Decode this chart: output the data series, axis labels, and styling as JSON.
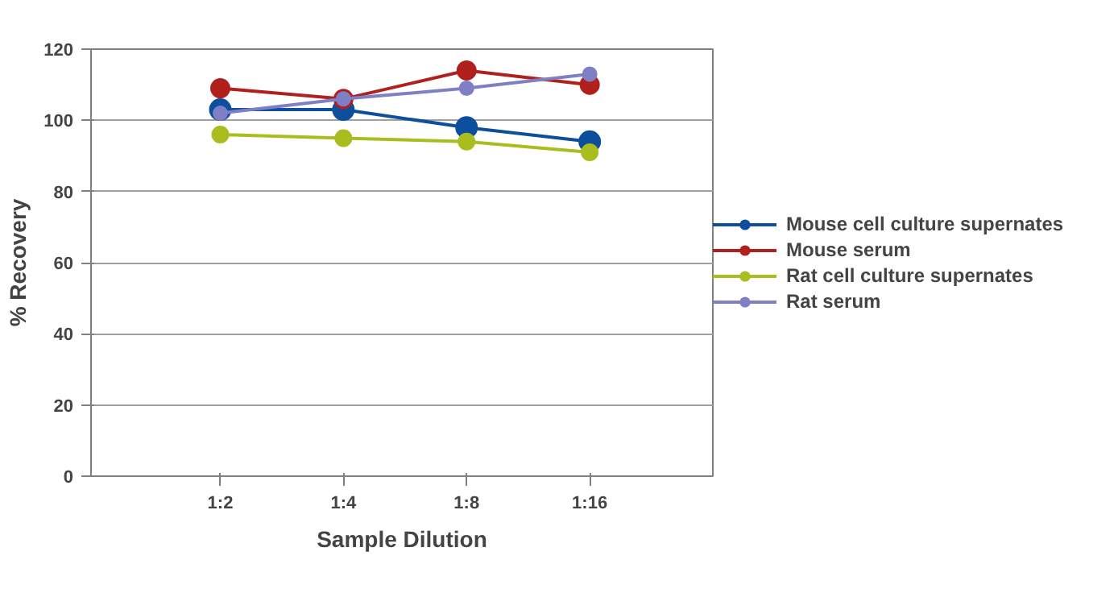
{
  "chart_data": {
    "type": "line",
    "xlabel": "Sample Dilution",
    "ylabel": "% Recovery",
    "categories": [
      "1:2",
      "1:4",
      "1:8",
      "1:16"
    ],
    "series": [
      {
        "name": "Mouse cell culture supernates",
        "color": "#0d4f9c",
        "values": [
          103,
          103,
          98,
          94
        ]
      },
      {
        "name": "Mouse serum",
        "color": "#b0201c",
        "values": [
          109,
          106,
          114,
          110
        ]
      },
      {
        "name": "Rat cell culture supernates",
        "color": "#a9bd1e",
        "values": [
          96,
          95,
          94,
          91
        ]
      },
      {
        "name": "Rat serum",
        "color": "#7f7fc6",
        "values": [
          102,
          106,
          109,
          113
        ]
      }
    ],
    "ylim": [
      0,
      120
    ],
    "yticks": [
      0,
      20,
      40,
      60,
      80,
      100,
      120
    ],
    "grid": "y",
    "legend": "right",
    "marker": "circle",
    "line_style": "solid"
  }
}
